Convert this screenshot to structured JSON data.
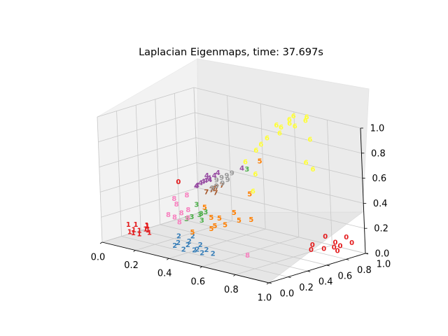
{
  "chart_data": {
    "type": "scatter",
    "title": "Laplacian Eigenmaps, time: 37.697s",
    "projection": "3d",
    "xlabel": "",
    "ylabel": "",
    "zlabel": "",
    "xlim": [
      0,
      1
    ],
    "ylim": [
      0,
      1
    ],
    "zlim": [
      0,
      1
    ],
    "x_ticks": [
      "0.0",
      "0.2",
      "0.4",
      "0.6",
      "0.8",
      "1.0"
    ],
    "y_ticks": [
      "0.0",
      "0.2",
      "0.4",
      "0.6",
      "0.8",
      "1.0"
    ],
    "z_ticks": [
      "0.0",
      "0.2",
      "0.4",
      "0.6",
      "0.8",
      "1.0"
    ],
    "grid": true,
    "marker": "digit label",
    "colors": {
      "0": "#e41a1c",
      "1": "#e41a1c",
      "2": "#377eb8",
      "3": "#4daf4a",
      "4": "#984ea3",
      "5": "#ff7f00",
      "6": "#ffff33",
      "7": "#a65628",
      "8": "#f781bf",
      "9": "#999999"
    },
    "points": [
      {
        "label": "0",
        "x": 0.85,
        "y": 0.95,
        "z": 0.05
      },
      {
        "label": "0",
        "x": 0.9,
        "y": 0.85,
        "z": 0.05
      },
      {
        "label": "0",
        "x": 0.95,
        "y": 0.8,
        "z": 0.05
      },
      {
        "label": "0",
        "x": 0.82,
        "y": 0.9,
        "z": 0.1
      },
      {
        "label": "0",
        "x": 0.88,
        "y": 0.78,
        "z": 0.05
      },
      {
        "label": "0",
        "x": 0.92,
        "y": 0.88,
        "z": 0.06
      },
      {
        "label": "0",
        "x": 0.8,
        "y": 0.8,
        "z": 0.05
      },
      {
        "label": "0",
        "x": 0.95,
        "y": 0.95,
        "z": 0.08
      },
      {
        "label": "0",
        "x": 0.85,
        "y": 0.7,
        "z": 0.05
      },
      {
        "label": "0",
        "x": 0.9,
        "y": 0.98,
        "z": 0.1
      },
      {
        "label": "0",
        "x": 0.15,
        "y": 0.55,
        "z": 0.4
      },
      {
        "label": "1",
        "x": 0.05,
        "y": 0.2,
        "z": 0.05
      },
      {
        "label": "1",
        "x": 0.08,
        "y": 0.25,
        "z": 0.06
      },
      {
        "label": "1",
        "x": 0.03,
        "y": 0.3,
        "z": 0.08
      },
      {
        "label": "1",
        "x": 0.06,
        "y": 0.22,
        "z": 0.04
      },
      {
        "label": "1",
        "x": 0.1,
        "y": 0.28,
        "z": 0.07
      },
      {
        "label": "1",
        "x": 0.04,
        "y": 0.26,
        "z": 0.05
      },
      {
        "label": "1",
        "x": 0.12,
        "y": 0.18,
        "z": 0.06
      },
      {
        "label": "1",
        "x": 0.02,
        "y": 0.24,
        "z": 0.09
      },
      {
        "label": "1",
        "x": 0.09,
        "y": 0.32,
        "z": 0.05
      },
      {
        "label": "1",
        "x": 0.07,
        "y": 0.35,
        "z": 0.07
      },
      {
        "label": "1",
        "x": 0.11,
        "y": 0.3,
        "z": 0.04
      },
      {
        "label": "1",
        "x": 0.05,
        "y": 0.38,
        "z": 0.06
      },
      {
        "label": "2",
        "x": 0.35,
        "y": 0.15,
        "z": 0.05
      },
      {
        "label": "2",
        "x": 0.4,
        "y": 0.2,
        "z": 0.06
      },
      {
        "label": "2",
        "x": 0.45,
        "y": 0.18,
        "z": 0.04
      },
      {
        "label": "2",
        "x": 0.5,
        "y": 0.22,
        "z": 0.05
      },
      {
        "label": "2",
        "x": 0.38,
        "y": 0.25,
        "z": 0.07
      },
      {
        "label": "2",
        "x": 0.42,
        "y": 0.12,
        "z": 0.05
      },
      {
        "label": "2",
        "x": 0.48,
        "y": 0.16,
        "z": 0.06
      },
      {
        "label": "2",
        "x": 0.33,
        "y": 0.22,
        "z": 0.05
      },
      {
        "label": "2",
        "x": 0.55,
        "y": 0.2,
        "z": 0.04
      },
      {
        "label": "2",
        "x": 0.3,
        "y": 0.28,
        "z": 0.08
      },
      {
        "label": "2",
        "x": 0.44,
        "y": 0.26,
        "z": 0.06
      },
      {
        "label": "2",
        "x": 0.36,
        "y": 0.32,
        "z": 0.09
      },
      {
        "label": "2",
        "x": 0.52,
        "y": 0.14,
        "z": 0.05
      },
      {
        "label": "3",
        "x": 0.3,
        "y": 0.42,
        "z": 0.2
      },
      {
        "label": "3",
        "x": 0.33,
        "y": 0.45,
        "z": 0.22
      },
      {
        "label": "3",
        "x": 0.28,
        "y": 0.4,
        "z": 0.18
      },
      {
        "label": "3",
        "x": 0.35,
        "y": 0.48,
        "z": 0.24
      },
      {
        "label": "3",
        "x": 0.32,
        "y": 0.44,
        "z": 0.3
      },
      {
        "label": "3",
        "x": 0.36,
        "y": 0.42,
        "z": 0.19
      },
      {
        "label": "3",
        "x": 0.45,
        "y": 0.75,
        "z": 0.55
      },
      {
        "label": "3",
        "x": 0.31,
        "y": 0.5,
        "z": 0.21
      },
      {
        "label": "4",
        "x": 0.3,
        "y": 0.55,
        "z": 0.45
      },
      {
        "label": "4",
        "x": 0.32,
        "y": 0.58,
        "z": 0.48
      },
      {
        "label": "4",
        "x": 0.28,
        "y": 0.52,
        "z": 0.42
      },
      {
        "label": "4",
        "x": 0.34,
        "y": 0.6,
        "z": 0.5
      },
      {
        "label": "4",
        "x": 0.31,
        "y": 0.56,
        "z": 0.46
      },
      {
        "label": "4",
        "x": 0.29,
        "y": 0.54,
        "z": 0.44
      },
      {
        "label": "4",
        "x": 0.35,
        "y": 0.62,
        "z": 0.52
      },
      {
        "label": "4",
        "x": 0.33,
        "y": 0.57,
        "z": 0.47
      },
      {
        "label": "4",
        "x": 0.27,
        "y": 0.53,
        "z": 0.41
      },
      {
        "label": "4",
        "x": 0.3,
        "y": 0.59,
        "z": 0.49
      },
      {
        "label": "4",
        "x": 0.42,
        "y": 0.75,
        "z": 0.55
      },
      {
        "label": "5",
        "x": 0.4,
        "y": 0.45,
        "z": 0.22
      },
      {
        "label": "5",
        "x": 0.45,
        "y": 0.4,
        "z": 0.18
      },
      {
        "label": "5",
        "x": 0.5,
        "y": 0.42,
        "z": 0.2
      },
      {
        "label": "5",
        "x": 0.55,
        "y": 0.48,
        "z": 0.24
      },
      {
        "label": "5",
        "x": 0.48,
        "y": 0.55,
        "z": 0.26
      },
      {
        "label": "5",
        "x": 0.42,
        "y": 0.5,
        "z": 0.21
      },
      {
        "label": "5",
        "x": 0.6,
        "y": 0.52,
        "z": 0.25
      },
      {
        "label": "5",
        "x": 0.38,
        "y": 0.42,
        "z": 0.3
      },
      {
        "label": "5",
        "x": 0.52,
        "y": 0.65,
        "z": 0.4
      },
      {
        "label": "5",
        "x": 0.5,
        "y": 0.8,
        "z": 0.62
      },
      {
        "label": "5",
        "x": 0.44,
        "y": 0.38,
        "z": 0.16
      },
      {
        "label": "5",
        "x": 0.36,
        "y": 0.32,
        "z": 0.12
      },
      {
        "label": "6",
        "x": 0.55,
        "y": 0.9,
        "z": 0.9
      },
      {
        "label": "6",
        "x": 0.6,
        "y": 0.95,
        "z": 0.95
      },
      {
        "label": "6",
        "x": 0.65,
        "y": 0.92,
        "z": 0.92
      },
      {
        "label": "6",
        "x": 0.58,
        "y": 0.88,
        "z": 0.85
      },
      {
        "label": "6",
        "x": 0.62,
        "y": 0.96,
        "z": 0.98
      },
      {
        "label": "6",
        "x": 0.68,
        "y": 0.98,
        "z": 0.96
      },
      {
        "label": "6",
        "x": 0.52,
        "y": 0.85,
        "z": 0.8
      },
      {
        "label": "6",
        "x": 0.5,
        "y": 0.82,
        "z": 0.75
      },
      {
        "label": "6",
        "x": 0.48,
        "y": 0.8,
        "z": 0.7
      },
      {
        "label": "6",
        "x": 0.56,
        "y": 0.93,
        "z": 0.88
      },
      {
        "label": "6",
        "x": 0.63,
        "y": 0.9,
        "z": 0.94
      },
      {
        "label": "6",
        "x": 0.7,
        "y": 0.96,
        "z": 1.0
      },
      {
        "label": "6",
        "x": 0.75,
        "y": 0.9,
        "z": 0.85
      },
      {
        "label": "6",
        "x": 0.78,
        "y": 0.8,
        "z": 0.7
      },
      {
        "label": "6",
        "x": 0.85,
        "y": 0.75,
        "z": 0.68
      },
      {
        "label": "6",
        "x": 0.46,
        "y": 0.72,
        "z": 0.62
      },
      {
        "label": "6",
        "x": 0.53,
        "y": 0.7,
        "z": 0.55
      },
      {
        "label": "6",
        "x": 0.57,
        "y": 0.6,
        "z": 0.45
      },
      {
        "label": "7",
        "x": 0.32,
        "y": 0.6,
        "z": 0.38
      },
      {
        "label": "7",
        "x": 0.34,
        "y": 0.62,
        "z": 0.4
      },
      {
        "label": "7",
        "x": 0.3,
        "y": 0.58,
        "z": 0.36
      },
      {
        "label": "7",
        "x": 0.36,
        "y": 0.64,
        "z": 0.42
      },
      {
        "label": "7",
        "x": 0.33,
        "y": 0.61,
        "z": 0.39
      },
      {
        "label": "7",
        "x": 0.35,
        "y": 0.59,
        "z": 0.37
      },
      {
        "label": "8",
        "x": 0.2,
        "y": 0.35,
        "z": 0.2
      },
      {
        "label": "8",
        "x": 0.25,
        "y": 0.4,
        "z": 0.22
      },
      {
        "label": "8",
        "x": 0.22,
        "y": 0.38,
        "z": 0.18
      },
      {
        "label": "8",
        "x": 0.28,
        "y": 0.42,
        "z": 0.25
      },
      {
        "label": "8",
        "x": 0.18,
        "y": 0.45,
        "z": 0.3
      },
      {
        "label": "8",
        "x": 0.3,
        "y": 0.38,
        "z": 0.2
      },
      {
        "label": "8",
        "x": 0.24,
        "y": 0.48,
        "z": 0.34
      },
      {
        "label": "8",
        "x": 0.26,
        "y": 0.36,
        "z": 0.16
      },
      {
        "label": "8",
        "x": 0.21,
        "y": 0.42,
        "z": 0.27
      },
      {
        "label": "8",
        "x": 0.7,
        "y": 0.3,
        "z": 0.05
      },
      {
        "label": "9",
        "x": 0.34,
        "y": 0.62,
        "z": 0.46
      },
      {
        "label": "9",
        "x": 0.36,
        "y": 0.64,
        "z": 0.48
      },
      {
        "label": "9",
        "x": 0.38,
        "y": 0.66,
        "z": 0.5
      },
      {
        "label": "9",
        "x": 0.4,
        "y": 0.68,
        "z": 0.52
      },
      {
        "label": "9",
        "x": 0.37,
        "y": 0.63,
        "z": 0.44
      },
      {
        "label": "9",
        "x": 0.35,
        "y": 0.6,
        "z": 0.42
      },
      {
        "label": "9",
        "x": 0.39,
        "y": 0.65,
        "z": 0.47
      },
      {
        "label": "9",
        "x": 0.33,
        "y": 0.59,
        "z": 0.4
      }
    ]
  }
}
